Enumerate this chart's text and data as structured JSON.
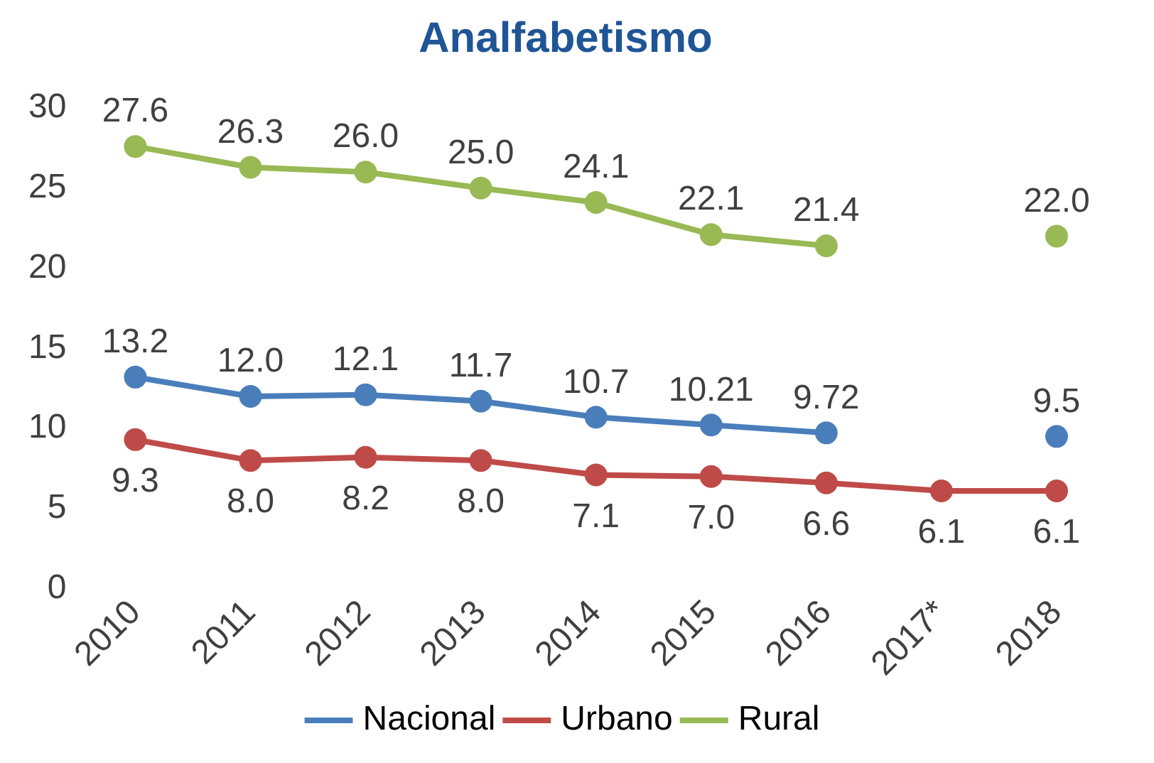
{
  "chart_data": {
    "type": "line",
    "title": "Analfabetismo",
    "categories": [
      "2010",
      "2011",
      "2012",
      "2013",
      "2014",
      "2015",
      "2016",
      "2017*",
      "2018"
    ],
    "series": [
      {
        "name": "Nacional",
        "color": "#4a7ebb",
        "values": [
          13.2,
          12.0,
          12.1,
          11.7,
          10.7,
          10.21,
          9.72,
          null,
          9.5
        ],
        "value_labels": [
          "13.2",
          "12.0",
          "12.1",
          "11.7",
          "10.7",
          "10.21",
          "9.72",
          null,
          "9.5"
        ]
      },
      {
        "name": "Urbano",
        "color": "#be4b48",
        "values": [
          9.3,
          8.0,
          8.2,
          8.0,
          7.1,
          7.0,
          6.6,
          6.1,
          6.1
        ],
        "value_labels": [
          "9.3",
          "8.0",
          "8.2",
          "8.0",
          "7.1",
          "7.0",
          "6.6",
          "6.1",
          "6.1"
        ]
      },
      {
        "name": "Rural",
        "color": "#98b954",
        "values": [
          27.6,
          26.3,
          26.0,
          25.0,
          24.1,
          22.1,
          21.4,
          null,
          22.0
        ],
        "value_labels": [
          "27.6",
          "26.3",
          "26.0",
          "25.0",
          "24.1",
          "22.1",
          "21.4",
          null,
          "22.0"
        ]
      }
    ],
    "ylim": [
      0,
      30
    ],
    "yticks": [
      0,
      5,
      10,
      15,
      20,
      25,
      30
    ],
    "grid": false,
    "legend": "bottom",
    "marker": "circle",
    "line_style": "solid"
  }
}
